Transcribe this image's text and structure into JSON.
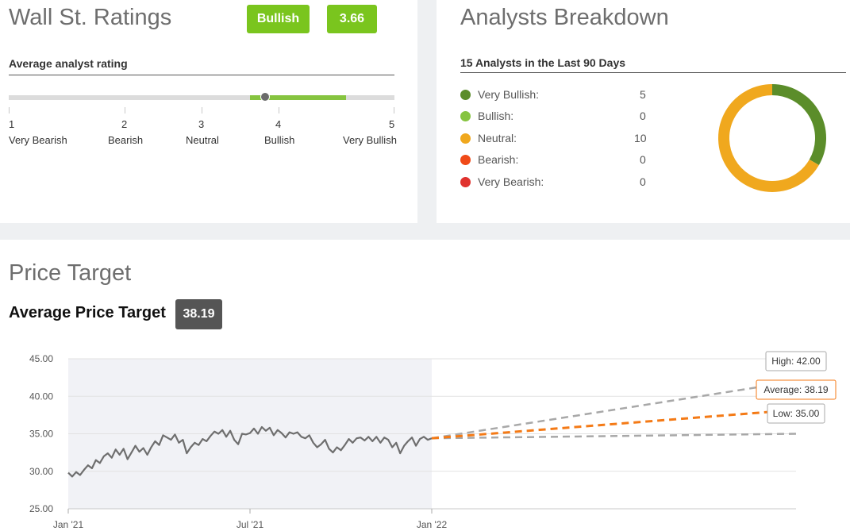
{
  "ratings": {
    "title": "Wall St. Ratings",
    "consensus_label": "Bullish",
    "consensus_score": "3.66",
    "subtitle": "Average analyst rating",
    "scale": [
      {
        "num": "1",
        "label": "Very Bearish"
      },
      {
        "num": "2",
        "label": "Bearish"
      },
      {
        "num": "3",
        "label": "Neutral"
      },
      {
        "num": "4",
        "label": "Bullish"
      },
      {
        "num": "5",
        "label": "Very Bullish"
      }
    ],
    "rating_value": 3.66,
    "rating_range": [
      3.5,
      4.5
    ],
    "colors": {
      "badge": "#7ac51e",
      "range": "#86c440",
      "marker": "#6b6b6b"
    }
  },
  "breakdown": {
    "title": "Analysts Breakdown",
    "subtitle": "15 Analysts in the Last 90 Days",
    "categories": [
      {
        "label": "Very Bullish:",
        "count": 5,
        "color": "#5b8d2a"
      },
      {
        "label": "Bullish:",
        "count": 0,
        "color": "#86c440"
      },
      {
        "label": "Neutral:",
        "count": 10,
        "color": "#f0a81e"
      },
      {
        "label": "Bearish:",
        "count": 0,
        "color": "#f04a18"
      },
      {
        "label": "Very Bearish:",
        "count": 0,
        "color": "#e0322e"
      }
    ]
  },
  "price": {
    "title": "Price Target",
    "avg_label": "Average Price Target",
    "avg_value": "38.19",
    "chart_data": {
      "type": "line",
      "x_ticks": [
        "Jan '21",
        "Jul '21",
        "Jan '22"
      ],
      "y_ticks": [
        "45.00",
        "40.00",
        "35.00",
        "30.00",
        "25.00"
      ],
      "ylim": [
        25,
        45
      ],
      "history": {
        "x_start": "2021-01-01",
        "x_end": "2022-01-01",
        "values": [
          29.8,
          29.3,
          29.9,
          29.5,
          30.2,
          30.8,
          30.4,
          31.5,
          31.1,
          32.0,
          32.4,
          31.8,
          32.9,
          32.2,
          33.0,
          31.6,
          32.5,
          33.4,
          32.6,
          33.1,
          32.2,
          33.2,
          34.0,
          33.5,
          34.8,
          34.5,
          34.2,
          34.9,
          33.8,
          34.2,
          32.4,
          33.2,
          33.8,
          33.5,
          34.3,
          34.0,
          34.7,
          35.3,
          35.0,
          35.5,
          34.6,
          35.4,
          34.2,
          33.6,
          35.0,
          34.9,
          35.1,
          35.7,
          35.0,
          35.9,
          35.4,
          35.8,
          34.8,
          35.5,
          35.1,
          34.5,
          35.2,
          35.0,
          35.2,
          34.6,
          34.4,
          34.8,
          33.8,
          33.2,
          33.6,
          34.2,
          33.0,
          32.5,
          33.2,
          32.8,
          33.5,
          34.3,
          33.8,
          34.4,
          34.5,
          34.1,
          34.6,
          34.0,
          34.6,
          33.8,
          34.5,
          34.2,
          33.2,
          33.8,
          32.4,
          33.4,
          34.0,
          34.5,
          33.4,
          34.3,
          34.6,
          34.2,
          34.4
        ],
        "color": "#6e6e6e"
      },
      "forecast": {
        "x": "2022-12-31",
        "high": 42.0,
        "average": 38.19,
        "low": 35.0,
        "start_value": 34.4
      },
      "labels": {
        "high": "High: 42.00",
        "average": "Average: 38.19",
        "low": "Low: 35.00"
      },
      "colors": {
        "average": "#f47a16",
        "high_low": "#a8a8a8",
        "history_bg": "#f1f2f6"
      }
    }
  }
}
